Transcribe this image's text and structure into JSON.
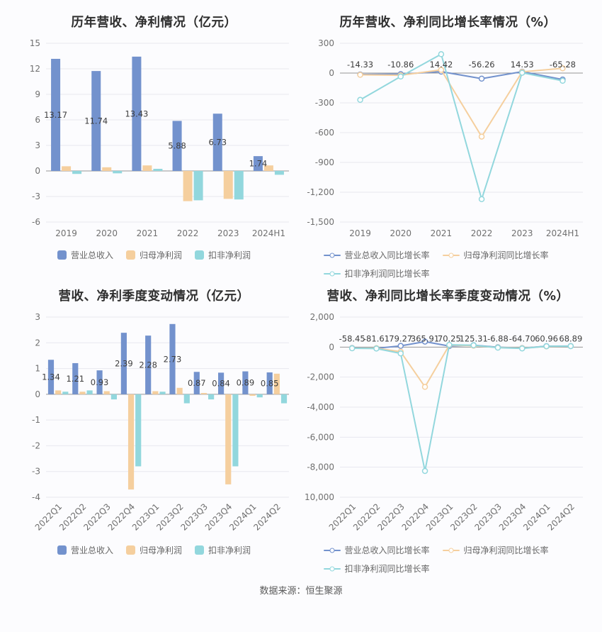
{
  "source": "数据来源：恒生聚源",
  "colors": {
    "revenue_blue": "#7392cd",
    "net_profit_orange": "#f5cf9e",
    "deducted_profit_teal": "#92d7dd",
    "grid_line": "#e8e8ef",
    "zero_line": "#969696"
  },
  "chart_data": [
    {
      "id": "annual-values",
      "type": "bar",
      "title": "历年营收、净利情况（亿元）",
      "categories": [
        "2019",
        "2020",
        "2021",
        "2022",
        "2023",
        "2024H1"
      ],
      "ylim": [
        -6,
        15
      ],
      "yticks": [
        15,
        12,
        9,
        6,
        3,
        0,
        -3,
        -6
      ],
      "ytick_labels": [
        "15",
        "12",
        "9",
        "6",
        "3",
        "0",
        "-3",
        "-6"
      ],
      "rotate_x_labels": false,
      "series": [
        {
          "name": "营业总收入",
          "color": "#7392cd",
          "values": [
            13.17,
            11.74,
            13.43,
            5.88,
            6.73,
            1.74
          ],
          "labels": [
            "13.17",
            "11.74",
            "13.43",
            "5.88",
            "6.73",
            "1.74"
          ]
        },
        {
          "name": "归母净利润",
          "color": "#f5cf9e",
          "values": [
            0.55,
            0.43,
            0.65,
            -3.55,
            -3.28,
            0.65
          ]
        },
        {
          "name": "扣非净利润",
          "color": "#92d7dd",
          "values": [
            -0.35,
            -0.28,
            0.25,
            -3.45,
            -3.35,
            -0.45
          ]
        }
      ]
    },
    {
      "id": "annual-growth",
      "type": "line",
      "title": "历年营收、净利同比增长率情况（%）",
      "categories": [
        "2019",
        "2020",
        "2021",
        "2022",
        "2023",
        "2024H1"
      ],
      "ylim": [
        -1500,
        300
      ],
      "yticks": [
        300,
        0,
        -300,
        -600,
        -900,
        -1200,
        -1500
      ],
      "ytick_labels": [
        "300",
        "0",
        "-300",
        "-600",
        "-900",
        "-1,200",
        "-1,500"
      ],
      "rotate_x_labels": false,
      "series": [
        {
          "name": "营业总收入同比增长率",
          "color": "#7392cd",
          "values": [
            -14.33,
            -10.86,
            14.42,
            -56.26,
            14.53,
            -65.28
          ],
          "labels": [
            "-14.33",
            "-10.86",
            "14.42",
            "-56.26",
            "14.53",
            "-65.28"
          ]
        },
        {
          "name": "归母净利润同比增长率",
          "color": "#f5cf9e",
          "values": [
            -18,
            -22,
            32,
            -640,
            12,
            48
          ]
        },
        {
          "name": "扣非净利润同比增长率",
          "color": "#92d7dd",
          "values": [
            -270,
            -35,
            190,
            -1270,
            3,
            -78
          ]
        }
      ]
    },
    {
      "id": "quarterly-values",
      "type": "bar",
      "title": "营收、净利季度变动情况（亿元）",
      "categories": [
        "2022Q1",
        "2022Q2",
        "2022Q3",
        "2022Q4",
        "2023Q1",
        "2023Q2",
        "2023Q3",
        "2023Q4",
        "2024Q1",
        "2024Q2"
      ],
      "ylim": [
        -4,
        3
      ],
      "yticks": [
        3,
        2,
        1,
        0,
        -1,
        -2,
        -3,
        -4
      ],
      "ytick_labels": [
        "3",
        "2",
        "1",
        "0",
        "-1",
        "-2",
        "-3",
        "-4"
      ],
      "rotate_x_labels": true,
      "series": [
        {
          "name": "营业总收入",
          "color": "#7392cd",
          "values": [
            1.34,
            1.21,
            0.93,
            2.39,
            2.28,
            2.73,
            0.87,
            0.84,
            0.89,
            0.85
          ],
          "labels": [
            "1.34",
            "1.21",
            "0.93",
            "2.39",
            "2.28",
            "2.73",
            "0.87",
            "0.84",
            "0.89",
            "0.85"
          ]
        },
        {
          "name": "归母净利润",
          "color": "#f5cf9e",
          "values": [
            0.15,
            0.1,
            0.12,
            -3.7,
            0.12,
            0.25,
            0.05,
            -3.5,
            -0.06,
            0.8
          ]
        },
        {
          "name": "扣非净利润",
          "color": "#92d7dd",
          "values": [
            0.1,
            0.15,
            -0.2,
            -2.8,
            0.1,
            -0.35,
            -0.2,
            -2.8,
            -0.12,
            -0.35
          ]
        }
      ]
    },
    {
      "id": "quarterly-growth",
      "type": "line",
      "title": "营收、净利同比增长率季度变动情况（%）",
      "categories": [
        "2022Q1",
        "2022Q2",
        "2022Q3",
        "2022Q4",
        "2023Q1",
        "2023Q2",
        "2023Q3",
        "2023Q4",
        "2024Q1",
        "2024Q2"
      ],
      "ylim": [
        -10000,
        2000
      ],
      "yticks": [
        2000,
        0,
        -2000,
        -4000,
        -6000,
        -8000,
        -10000
      ],
      "ytick_labels": [
        "2,000",
        "0",
        "-2,000",
        "-4,000",
        "-6,000",
        "-8,000",
        "-10,000"
      ],
      "rotate_x_labels": true,
      "series": [
        {
          "name": "营业总收入同比增长率",
          "color": "#7392cd",
          "values": [
            -58.45,
            -81.61,
            79.27,
            365.91,
            70.25,
            125.31,
            -6.88,
            -64.7,
            60.96,
            68.89
          ],
          "labels": [
            "-58.45",
            "-81.61",
            "79.27",
            "365.91",
            "70.25",
            "125.31",
            "-6.88",
            "-64.70",
            "60.96",
            "68.89"
          ]
        },
        {
          "name": "归母净利润同比增长率",
          "color": "#f5cf9e",
          "values": [
            -70,
            -75,
            -310,
            -2650,
            130,
            90,
            -25,
            -70,
            45,
            62
          ]
        },
        {
          "name": "扣非净利润同比增长率",
          "color": "#92d7dd",
          "values": [
            -80,
            -95,
            -420,
            -8250,
            150,
            120,
            -40,
            -90,
            55,
            65
          ]
        }
      ]
    }
  ]
}
